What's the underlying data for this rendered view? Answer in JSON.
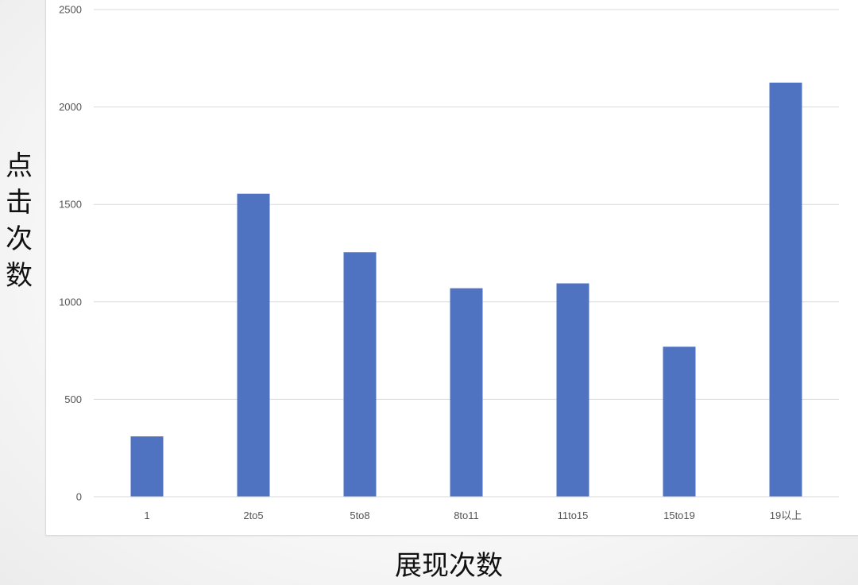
{
  "chart_data": {
    "type": "bar",
    "categories": [
      "1",
      "2to5",
      "5to8",
      "8to11",
      "11to15",
      "15to19",
      "19以上"
    ],
    "values": [
      310,
      1555,
      1255,
      1070,
      1095,
      770,
      2125
    ],
    "xlabel": "展现次数",
    "ylabel": "点击次数",
    "ylim": [
      0,
      2500
    ],
    "yticks": [
      0,
      500,
      1000,
      1500,
      2000,
      2500
    ],
    "grid": true,
    "bar_color": "#4f73c0",
    "grid_color": "#d9d9d9"
  }
}
